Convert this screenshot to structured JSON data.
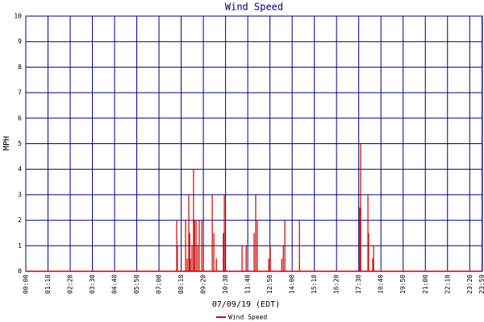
{
  "chart_data": {
    "type": "bar",
    "title": "Wind Speed",
    "x_label": "07/09/19 (EDT)",
    "y_label": "MPH",
    "x": [
      476,
      478,
      504,
      509,
      514,
      517,
      519,
      524,
      529,
      532,
      537,
      542,
      547,
      555,
      560,
      588,
      593,
      601,
      623,
      626,
      682,
      695,
      720,
      725,
      730,
      766,
      771,
      807,
      812,
      817,
      863,
      1053,
      1056,
      1079,
      1081,
      1094,
      1097
    ],
    "series": [
      {
        "name": "Wind Speed",
        "color": "#cc0000",
        "values": [
          2,
          1,
          2,
          0.5,
          3,
          1.5,
          0.5,
          1,
          4,
          2,
          2,
          1,
          2,
          2,
          1,
          3,
          1.5,
          0.5,
          1.5,
          3,
          1,
          1,
          1.5,
          3,
          2,
          0.5,
          1,
          0.5,
          1,
          2,
          2,
          2.5,
          5,
          3,
          1.5,
          0.5,
          1
        ]
      }
    ],
    "xlim": [
      0,
      1440
    ],
    "ylim": [
      0,
      10
    ],
    "xticks": [
      {
        "value": 0,
        "label": "00:00"
      },
      {
        "value": 70,
        "label": "01:10"
      },
      {
        "value": 140,
        "label": "02:20"
      },
      {
        "value": 210,
        "label": "03:30"
      },
      {
        "value": 280,
        "label": "04:40"
      },
      {
        "value": 350,
        "label": "05:50"
      },
      {
        "value": 420,
        "label": "07:00"
      },
      {
        "value": 490,
        "label": "08:10"
      },
      {
        "value": 560,
        "label": "09:20"
      },
      {
        "value": 630,
        "label": "10:30"
      },
      {
        "value": 700,
        "label": "11:40"
      },
      {
        "value": 770,
        "label": "12:50"
      },
      {
        "value": 840,
        "label": "14:00"
      },
      {
        "value": 910,
        "label": "15:10"
      },
      {
        "value": 980,
        "label": "16:20"
      },
      {
        "value": 1050,
        "label": "17:30"
      },
      {
        "value": 1120,
        "label": "18:40"
      },
      {
        "value": 1190,
        "label": "19:50"
      },
      {
        "value": 1260,
        "label": "21:00"
      },
      {
        "value": 1330,
        "label": "22:10"
      },
      {
        "value": 1400,
        "label": "23:20"
      },
      {
        "value": 1439,
        "label": "23:59"
      }
    ],
    "yticks": [
      0,
      1,
      2,
      3,
      4,
      5,
      6,
      7,
      8,
      9,
      10
    ],
    "grid": true,
    "grid_color": "#000080"
  }
}
